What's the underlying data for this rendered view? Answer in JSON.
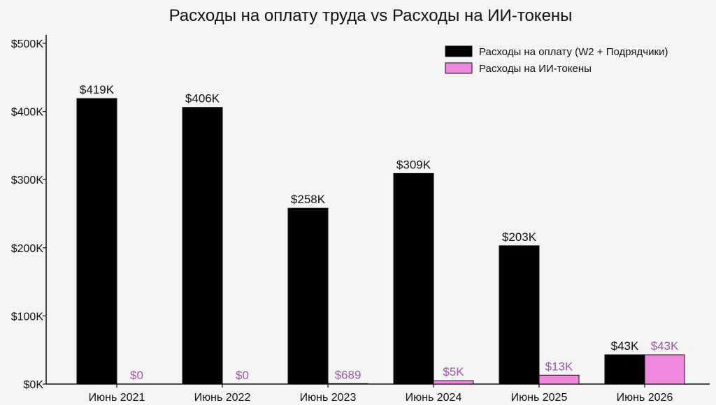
{
  "chart_data": {
    "type": "bar",
    "title": "Расходы на оплату труда vs Расходы на ИИ-токены",
    "xlabel": "",
    "ylabel": "",
    "categories": [
      "Июнь 2021",
      "Июнь 2022",
      "Июнь 2023",
      "Июнь 2024",
      "Июнь 2025",
      "Июнь 2026"
    ],
    "ylim": [
      0,
      500000
    ],
    "yticks": [
      {
        "value": 0,
        "label": "$0K"
      },
      {
        "value": 100000,
        "label": "$100K"
      },
      {
        "value": 200000,
        "label": "$200K"
      },
      {
        "value": 300000,
        "label": "$300K"
      },
      {
        "value": 400000,
        "label": "$400K"
      },
      {
        "value": 500000,
        "label": "$500K"
      }
    ],
    "series": [
      {
        "name": "Расходы на оплату (W2 + Подрядчики)",
        "color": "#000000",
        "label_color": "#111111",
        "values": [
          419000,
          406000,
          258000,
          309000,
          203000,
          43000
        ],
        "labels": [
          "$419K",
          "$406K",
          "$258K",
          "$309K",
          "$203K",
          "$43K"
        ]
      },
      {
        "name": "Расходы на ИИ-токены",
        "color": "#ee88dd",
        "label_color": "#9b59a8",
        "values": [
          0,
          0,
          689,
          5000,
          13000,
          43000
        ],
        "labels": [
          "$0",
          "$0",
          "$689",
          "$5K",
          "$13K",
          "$43K"
        ]
      }
    ],
    "legend": "top-right",
    "grid": false
  }
}
